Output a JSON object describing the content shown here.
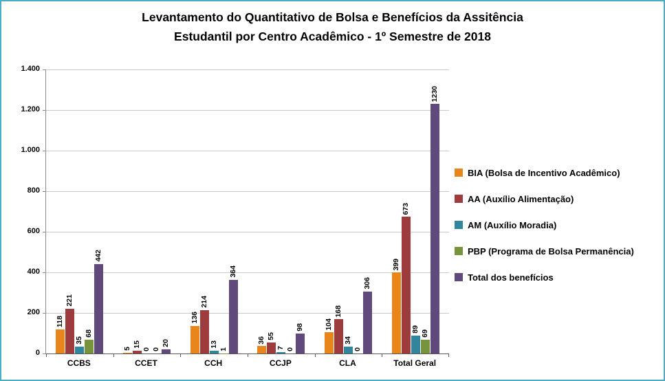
{
  "title": {
    "line1": "Levantamento do Quantitativo de Bolsa e Benefícios da Assitência",
    "line2": "Estudantil  por Centro Acadêmico - 1º Semestre de 2018"
  },
  "chart_data": {
    "type": "bar",
    "title": "Levantamento do Quantitativo de Bolsa e Benefícios da Assitência Estudantil por Centro Acadêmico - 1º Semestre de 2018",
    "categories": [
      "CCBS",
      "CCET",
      "CCH",
      "CCJP",
      "CLA",
      "Total Geral"
    ],
    "series": [
      {
        "name": "BIA (Bolsa de Incentivo Acadêmico)",
        "color": "#E8861B",
        "values": [
          118,
          5,
          136,
          36,
          104,
          399
        ]
      },
      {
        "name": "AA (Auxílio Alimentação)",
        "color": "#9E3B3C",
        "values": [
          221,
          15,
          214,
          55,
          168,
          673
        ]
      },
      {
        "name": "AM (Auxílio Moradia)",
        "color": "#31859C",
        "values": [
          35,
          0,
          13,
          7,
          34,
          89
        ]
      },
      {
        "name": "PBP (Programa de Bolsa Permanência)",
        "color": "#77933C",
        "values": [
          68,
          0,
          1,
          0,
          0,
          69
        ]
      },
      {
        "name": "Total dos benefícios",
        "color": "#604A7B",
        "values": [
          442,
          20,
          364,
          98,
          306,
          1230
        ]
      }
    ],
    "ylim": [
      0,
      1400
    ],
    "ytick_step": 200,
    "ytick_labels": [
      "0",
      "200",
      "400",
      "600",
      "800",
      "1.000",
      "1.200",
      "1.400"
    ],
    "grid": true,
    "legend_position": "right",
    "value_label_rotation": 90,
    "frame_color": "#4BACC6"
  }
}
